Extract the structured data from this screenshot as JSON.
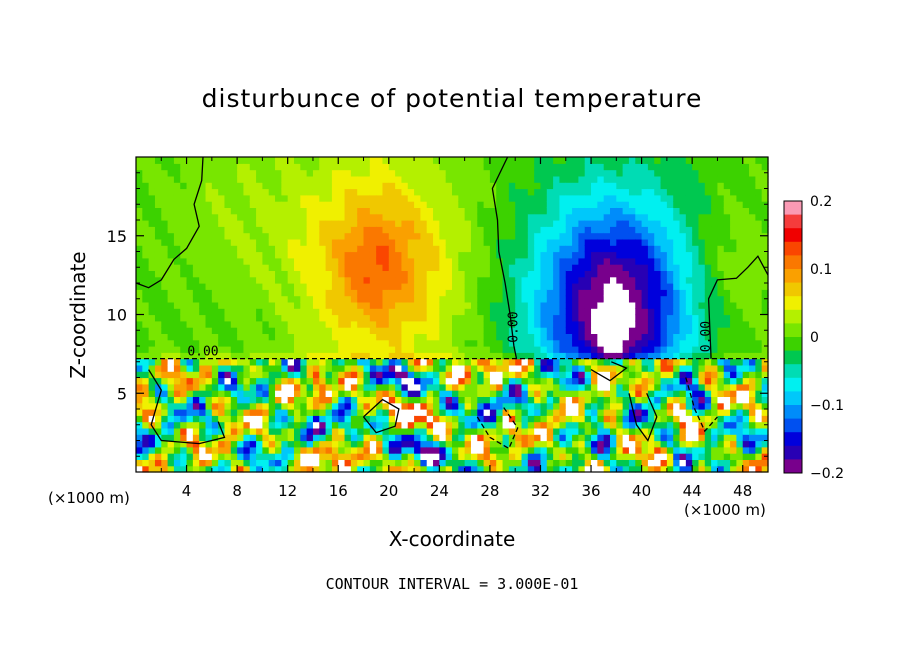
{
  "chart_data": {
    "type": "heatmap",
    "title": "disturbunce of potential temperature",
    "xlabel": "X-coordinate",
    "ylabel": "Z-coordinate",
    "x_unit_label": "(×1000 m)",
    "xlim": [
      0,
      50
    ],
    "ylim": [
      0,
      20
    ],
    "x_ticks": [
      4,
      8,
      12,
      16,
      20,
      24,
      28,
      32,
      36,
      40,
      44,
      48
    ],
    "y_ticks": [
      5,
      10,
      15
    ],
    "colorbar": {
      "range": [
        -0.2,
        0.2
      ],
      "tick_values": [
        0.2,
        0.1,
        0,
        -0.1,
        -0.2
      ],
      "tick_labels": [
        "0.2",
        "0.1",
        "0",
        "−0.1",
        "−0.2"
      ],
      "colors": [
        "#fa9ab4",
        "#f53c3c",
        "#f00000",
        "#fa4600",
        "#fa7800",
        "#faa000",
        "#f0c800",
        "#f0f000",
        "#b4f000",
        "#78e600",
        "#3cd200",
        "#00c850",
        "#00dcb4",
        "#00f0f0",
        "#00c8fa",
        "#008cfa",
        "#0050f0",
        "#0000dc",
        "#2800b4",
        "#78008c"
      ]
    },
    "contour_labels": [
      "0.00",
      "0.00",
      "0.00"
    ],
    "contour_interval_text": "CONTOUR INTERVAL =  3.000E-01",
    "fields": {
      "upper_layer_note": "smooth field above z≈7.2: warm maximum near x≈18–22, z≈11–15 (~0.11), cold minimum near x≈38, z≈8–13 (~−0.2), near zero elsewhere",
      "lower_layer_note": "turbulent mixed layer below z≈7.2 with strong small-scale positive and negative anomalies"
    }
  }
}
